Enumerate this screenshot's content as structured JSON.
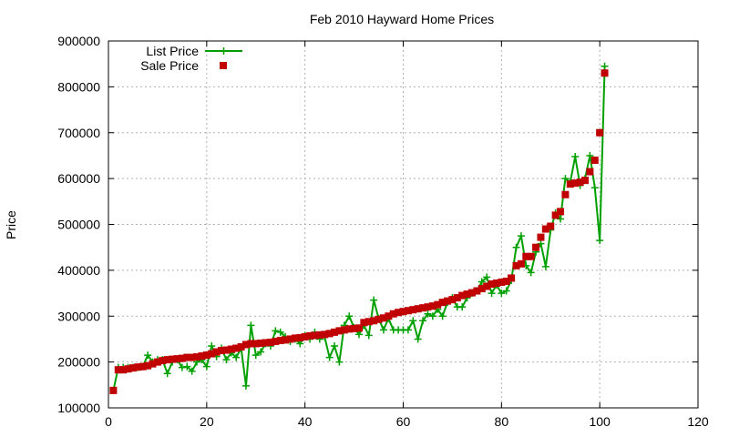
{
  "chart_data": {
    "type": "line",
    "title": "Feb 2010 Hayward Home Prices",
    "xlabel": "",
    "ylabel": "Price",
    "xlim": [
      0,
      120
    ],
    "ylim": [
      100000,
      900000
    ],
    "x_ticks": [
      0,
      20,
      40,
      60,
      80,
      100,
      120
    ],
    "y_ticks": [
      100000,
      200000,
      300000,
      400000,
      500000,
      600000,
      700000,
      800000,
      900000
    ],
    "grid": true,
    "legend_position": "top-left",
    "series": [
      {
        "name": "List Price",
        "style": "line-with-plus-markers",
        "color": "#00a000",
        "x": [
          1,
          2,
          3,
          4,
          5,
          6,
          7,
          8,
          9,
          10,
          11,
          12,
          13,
          14,
          15,
          16,
          17,
          18,
          19,
          20,
          21,
          22,
          23,
          24,
          25,
          26,
          27,
          28,
          29,
          30,
          31,
          32,
          33,
          34,
          35,
          36,
          37,
          38,
          39,
          40,
          41,
          42,
          43,
          44,
          45,
          46,
          47,
          48,
          49,
          50,
          51,
          52,
          53,
          54,
          55,
          56,
          57,
          58,
          59,
          60,
          61,
          62,
          63,
          64,
          65,
          66,
          67,
          68,
          69,
          70,
          71,
          72,
          73,
          74,
          75,
          76,
          77,
          78,
          79,
          80,
          81,
          82,
          83,
          84,
          85,
          86,
          87,
          88,
          89,
          90,
          91,
          92,
          93,
          94,
          95,
          96,
          97,
          98,
          99,
          100,
          101
        ],
        "values": [
          138000,
          188000,
          188000,
          188000,
          188000,
          188000,
          190000,
          215000,
          200000,
          205000,
          205000,
          175000,
          200000,
          205000,
          188000,
          190000,
          180000,
          200000,
          205000,
          190000,
          235000,
          212000,
          230000,
          205000,
          220000,
          210000,
          230000,
          148000,
          280000,
          215000,
          222000,
          240000,
          235000,
          268000,
          265000,
          255000,
          245000,
          250000,
          240000,
          258000,
          250000,
          265000,
          250000,
          255000,
          210000,
          235000,
          200000,
          280000,
          300000,
          275000,
          260000,
          280000,
          258000,
          335000,
          295000,
          270000,
          295000,
          270000,
          270000,
          270000,
          270000,
          290000,
          250000,
          290000,
          305000,
          300000,
          315000,
          300000,
          330000,
          340000,
          320000,
          320000,
          340000,
          350000,
          355000,
          375000,
          385000,
          350000,
          368000,
          350000,
          355000,
          378000,
          450000,
          475000,
          410000,
          395000,
          440000,
          458000,
          408000,
          488000,
          525000,
          512000,
          600000,
          592000,
          648000,
          585000,
          600000,
          650000,
          580000,
          465000,
          845000
        ]
      },
      {
        "name": "Sale Price",
        "style": "filled-square-markers",
        "color": "#c00000",
        "x": [
          1,
          2,
          3,
          4,
          5,
          6,
          7,
          8,
          9,
          10,
          11,
          12,
          13,
          14,
          15,
          16,
          17,
          18,
          19,
          20,
          21,
          22,
          23,
          24,
          25,
          26,
          27,
          28,
          29,
          30,
          31,
          32,
          33,
          34,
          35,
          36,
          37,
          38,
          39,
          40,
          41,
          42,
          43,
          44,
          45,
          46,
          47,
          48,
          49,
          50,
          51,
          52,
          53,
          54,
          55,
          56,
          57,
          58,
          59,
          60,
          61,
          62,
          63,
          64,
          65,
          66,
          67,
          68,
          69,
          70,
          71,
          72,
          73,
          74,
          75,
          76,
          77,
          78,
          79,
          80,
          81,
          82,
          83,
          84,
          85,
          86,
          87,
          88,
          89,
          90,
          91,
          92,
          93,
          94,
          95,
          96,
          97,
          98,
          99,
          100,
          101
        ],
        "values": [
          138000,
          183000,
          183000,
          185000,
          187000,
          189000,
          190000,
          192000,
          196000,
          200000,
          203000,
          205000,
          206000,
          207000,
          208000,
          210000,
          210000,
          211000,
          213000,
          215000,
          218000,
          222000,
          225000,
          226000,
          228000,
          230000,
          233000,
          238000,
          240000,
          240000,
          241000,
          242000,
          243000,
          245000,
          247000,
          248000,
          250000,
          252000,
          253000,
          255000,
          257000,
          258000,
          259000,
          260000,
          262000,
          265000,
          268000,
          270000,
          272000,
          273000,
          274000,
          286000,
          288000,
          290000,
          293000,
          296000,
          300000,
          305000,
          308000,
          310000,
          312000,
          314000,
          316000,
          318000,
          320000,
          322000,
          325000,
          330000,
          333000,
          336000,
          340000,
          345000,
          348000,
          351000,
          355000,
          360000,
          365000,
          370000,
          372000,
          374000,
          376000,
          383000,
          410000,
          414000,
          430000,
          430000,
          450000,
          472000,
          490000,
          496000,
          520000,
          528000,
          565000,
          588000,
          590000,
          592000,
          596000,
          615000,
          640000,
          700000,
          830000
        ]
      }
    ]
  }
}
